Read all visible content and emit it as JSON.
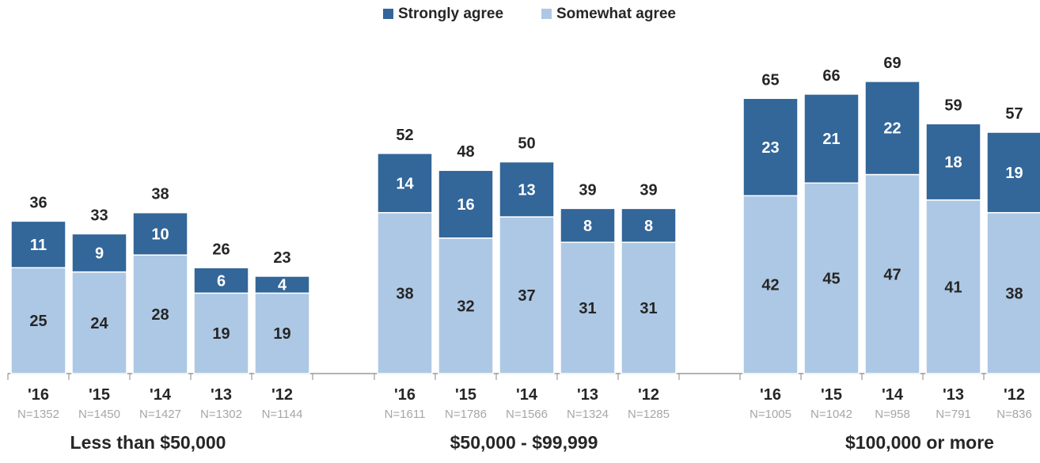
{
  "chart_data": {
    "type": "bar",
    "stacked": true,
    "legend": {
      "position": "top-center",
      "entries": [
        "Strongly agree",
        "Somewhat agree"
      ]
    },
    "colors": {
      "strongly": "#336699",
      "somewhat": "#adc8e4",
      "axis": "#999999",
      "n_text": "#a6a6a6",
      "text": "#262626"
    },
    "ylim": [
      0,
      75
    ],
    "groups": [
      {
        "label": "Less than $50,000",
        "bars": [
          {
            "year": "'16",
            "n": "N=1352",
            "total": 36,
            "strongly": 11,
            "somewhat": 25
          },
          {
            "year": "'15",
            "n": "N=1450",
            "total": 33,
            "strongly": 9,
            "somewhat": 24
          },
          {
            "year": "'14",
            "n": "N=1427",
            "total": 38,
            "strongly": 10,
            "somewhat": 28
          },
          {
            "year": "'13",
            "n": "N=1302",
            "total": 26,
            "strongly": 6,
            "somewhat": 19
          },
          {
            "year": "'12",
            "n": "N=1144",
            "total": 23,
            "strongly": 4,
            "somewhat": 19
          }
        ]
      },
      {
        "label": "$50,000 - $99,999",
        "bars": [
          {
            "year": "'16",
            "n": "N=1611",
            "total": 52,
            "strongly": 14,
            "somewhat": 38
          },
          {
            "year": "'15",
            "n": "N=1786",
            "total": 48,
            "strongly": 16,
            "somewhat": 32
          },
          {
            "year": "'14",
            "n": "N=1566",
            "total": 50,
            "strongly": 13,
            "somewhat": 37
          },
          {
            "year": "'13",
            "n": "N=1324",
            "total": 39,
            "strongly": 8,
            "somewhat": 31
          },
          {
            "year": "'12",
            "n": "N=1285",
            "total": 39,
            "strongly": 8,
            "somewhat": 31
          }
        ]
      },
      {
        "label": "$100,000 or more",
        "bars": [
          {
            "year": "'16",
            "n": "N=1005",
            "total": 65,
            "strongly": 23,
            "somewhat": 42
          },
          {
            "year": "'15",
            "n": "N=1042",
            "total": 66,
            "strongly": 21,
            "somewhat": 45
          },
          {
            "year": "'14",
            "n": "N=958",
            "total": 69,
            "strongly": 22,
            "somewhat": 47
          },
          {
            "year": "'13",
            "n": "N=791",
            "total": 59,
            "strongly": 18,
            "somewhat": 41
          },
          {
            "year": "'12",
            "n": "N=836",
            "total": 57,
            "strongly": 19,
            "somewhat": 38
          }
        ]
      }
    ]
  }
}
